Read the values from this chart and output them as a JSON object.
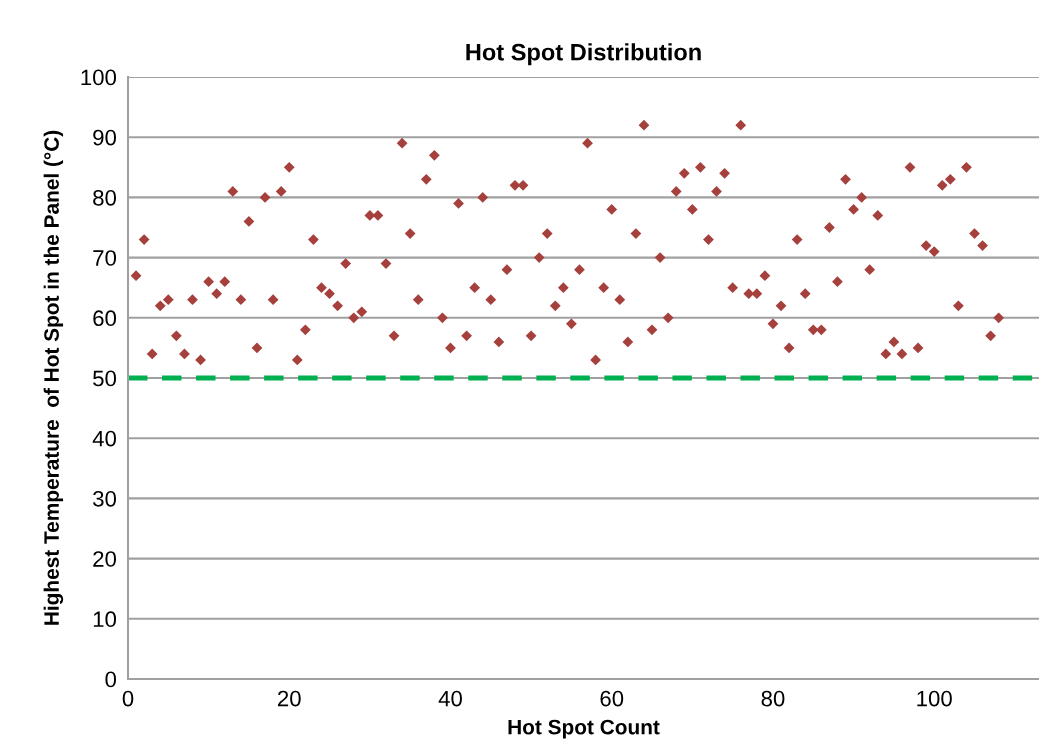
{
  "chart_data": {
    "type": "scatter",
    "title": "Hot Spot Distribution",
    "xlabel": "Hot Spot Count",
    "ylabel": "Highest Temperature  of Hot Spot in the Panel (°C)",
    "x": [
      1,
      2,
      3,
      4,
      5,
      6,
      7,
      8,
      9,
      10,
      11,
      12,
      13,
      14,
      15,
      16,
      17,
      18,
      19,
      20,
      21,
      22,
      23,
      24,
      25,
      26,
      27,
      28,
      29,
      30,
      31,
      32,
      33,
      34,
      35,
      36,
      37,
      38,
      39,
      40,
      41,
      42,
      43,
      44,
      45,
      46,
      47,
      48,
      49,
      50,
      51,
      52,
      53,
      54,
      55,
      56,
      57,
      58,
      59,
      60,
      61,
      62,
      63,
      64,
      65,
      66,
      67,
      68,
      69,
      70,
      71,
      72,
      73,
      74,
      75,
      76,
      77,
      78,
      79,
      80,
      81,
      82,
      83,
      84,
      85,
      86,
      87,
      88,
      89,
      90,
      91,
      92,
      93,
      94,
      95,
      96,
      97,
      98,
      99,
      100,
      101,
      102,
      103,
      104,
      105,
      106,
      107,
      108
    ],
    "values": [
      67,
      73,
      54,
      62,
      63,
      57,
      54,
      63,
      53,
      66,
      64,
      66,
      81,
      63,
      76,
      55,
      80,
      63,
      81,
      85,
      53,
      58,
      73,
      65,
      64,
      62,
      69,
      60,
      61,
      77,
      77,
      69,
      57,
      89,
      74,
      63,
      83,
      87,
      60,
      55,
      79,
      57,
      65,
      80,
      63,
      56,
      68,
      82,
      82,
      57,
      70,
      74,
      62,
      65,
      59,
      68,
      89,
      53,
      65,
      78,
      63,
      56,
      74,
      92,
      58,
      70,
      60,
      81,
      84,
      78,
      85,
      73,
      81,
      84,
      65,
      92,
      64,
      64,
      67,
      59,
      62,
      55,
      73,
      64,
      58,
      58,
      75,
      66,
      83,
      78,
      80,
      68,
      77,
      54,
      56,
      54,
      85,
      55,
      72,
      71,
      82,
      83,
      62,
      85,
      74,
      72,
      57,
      60
    ],
    "color": "#a5403c",
    "marker": "diamond",
    "xlim": [
      0,
      113
    ],
    "xticks": [
      0,
      20,
      40,
      60,
      80,
      100
    ],
    "ylim": [
      0,
      100
    ],
    "yticks": [
      0,
      10,
      20,
      30,
      40,
      50,
      60,
      70,
      80,
      90,
      100
    ],
    "grid": "y",
    "ref_lines": [
      {
        "axis": "y",
        "value": 50,
        "label": null,
        "color": "#00b050",
        "line_style": "dashed"
      }
    ]
  }
}
